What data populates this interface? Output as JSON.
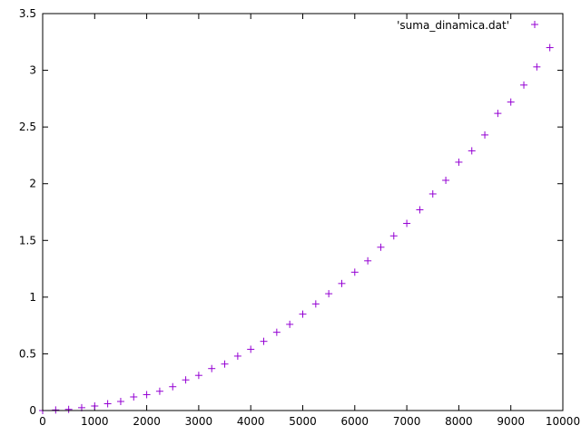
{
  "chart_data": {
    "type": "scatter",
    "title": "",
    "xlabel": "",
    "ylabel": "",
    "xlim": [
      0,
      10000
    ],
    "ylim": [
      0,
      3.5
    ],
    "xticks": [
      0,
      1000,
      2000,
      3000,
      4000,
      5000,
      6000,
      7000,
      8000,
      9000,
      10000
    ],
    "yticks": [
      0,
      0.5,
      1,
      1.5,
      2,
      2.5,
      3,
      3.5
    ],
    "xtick_labels": [
      "0",
      "1000",
      "2000",
      "3000",
      "4000",
      "5000",
      "6000",
      "7000",
      "8000",
      "9000",
      "10000"
    ],
    "ytick_labels": [
      "0",
      "0.5",
      "1",
      "1.5",
      "2",
      "2.5",
      "3",
      "3.5"
    ],
    "grid": false,
    "legend_position": "top-right",
    "marker": "plus",
    "series": [
      {
        "name": "'suma_dinamica.dat'",
        "color": "#9400d3",
        "x": [
          0,
          250,
          500,
          750,
          1000,
          1250,
          1500,
          1750,
          2000,
          2250,
          2500,
          2750,
          3000,
          3250,
          3500,
          3750,
          4000,
          4250,
          4500,
          4750,
          5000,
          5250,
          5500,
          5750,
          6000,
          6250,
          6500,
          6750,
          7000,
          7250,
          7500,
          7750,
          8000,
          8250,
          8500,
          8750,
          9000,
          9250,
          9500,
          9750
        ],
        "y": [
          0.0,
          0.005,
          0.01,
          0.025,
          0.04,
          0.06,
          0.08,
          0.12,
          0.14,
          0.17,
          0.21,
          0.27,
          0.31,
          0.37,
          0.41,
          0.48,
          0.54,
          0.61,
          0.69,
          0.76,
          0.85,
          0.94,
          1.03,
          1.12,
          1.22,
          1.32,
          1.44,
          1.54,
          1.65,
          1.77,
          1.91,
          2.03,
          2.19,
          2.29,
          2.43,
          2.62,
          2.72,
          2.87,
          3.03,
          3.2
        ]
      }
    ]
  }
}
